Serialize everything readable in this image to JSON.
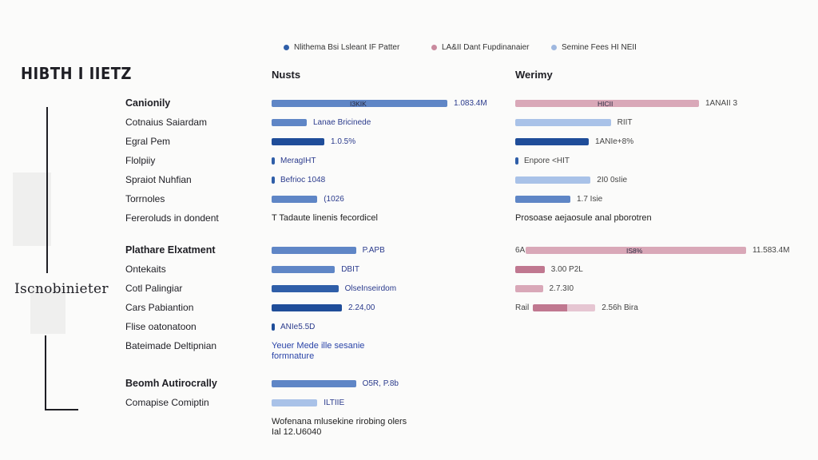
{
  "colors": {
    "blue_dark": "#1f4d99",
    "blue_mid": "#5f86c6",
    "blue_light": "#a9c2e8",
    "rose": "#d9a8b8",
    "rose_dark": "#c07890",
    "ink": "#1e1e24"
  },
  "title": "HIBTH I IIETZ",
  "side_label": "Iscnobinieter",
  "chart_data": {
    "type": "bar",
    "legend": [
      {
        "label": "Nlithema Bsi Lsleant IF Patter",
        "color": "#2f5ea8"
      },
      {
        "label": "LA&II Dant Fupdinanaier",
        "color": "#c98a9e"
      },
      {
        "label": "Semine Fees HI NEII",
        "color": "#9fb8df"
      }
    ],
    "columns": [
      "Nusts",
      "Werimy"
    ],
    "groups": [
      {
        "rows": [
          {
            "label": "Canionily",
            "is_header": true,
            "left": {
              "value": 100,
              "color": "#5f86c6",
              "inbar": "I3KIK",
              "text": "1.083.4M",
              "style": "bar"
            },
            "right": {
              "value": 100,
              "color": "#d9a8b8",
              "inbar": "HICII",
              "text": "1ANAII 3",
              "style": "bar"
            }
          },
          {
            "label": "Cotnaius Saiardam",
            "left": {
              "value": 20,
              "color": "#5f86c6",
              "text": "Lanae Bricinede",
              "style": "bar"
            },
            "right": {
              "value": 52,
              "color": "#a9c2e8",
              "text": "RIIT",
              "style": "bar"
            }
          },
          {
            "label": "Egral Pem",
            "left": {
              "value": 30,
              "color": "#1f4d99",
              "text": "1.0.5%",
              "style": "bar"
            },
            "right": {
              "value": 40,
              "color": "#1f4d99",
              "text": "1ANIe+8%",
              "style": "bar"
            }
          },
          {
            "label": "Flolpiiy",
            "left": {
              "value": 1,
              "color": "#2f5ea8",
              "text": "MeragIHT",
              "style": "tick"
            },
            "right": {
              "value": 1,
              "color": "#2f5ea8",
              "text": "Enpore <HIT",
              "style": "tick"
            }
          },
          {
            "label": "Spraiot Nuhfian",
            "left": {
              "value": 1,
              "color": "#2f5ea8",
              "text": "Befrioc 1048",
              "style": "tick"
            },
            "right": {
              "value": 41,
              "color": "#a9c2e8",
              "text": "2I0 0sIie",
              "style": "stripe"
            }
          },
          {
            "label": "Torrnoles",
            "left": {
              "value": 26,
              "color": "#5f86c6",
              "text": "(1026",
              "style": "bar"
            },
            "right": {
              "value": 30,
              "color": "#5f86c6",
              "text": "1.7 Isie",
              "style": "stripe"
            }
          },
          {
            "label": "Fereroluds in dondent",
            "left": {
              "text": "T Tadaute linenis fecordicel",
              "style": "note"
            },
            "right": {
              "text": "Prosoase aejaosule anal pborotren",
              "style": "note"
            }
          }
        ]
      },
      {
        "rows": [
          {
            "label": "Plathare Elxatment",
            "is_header": true,
            "left": {
              "value": 48,
              "color": "#5f86c6",
              "text": "P.APB",
              "style": "bar"
            },
            "right": {
              "value": 120,
              "color": "#d9a8b8",
              "inbar": "IS8%",
              "text": "11.583.4M",
              "prefix": "6A",
              "style": "bar"
            }
          },
          {
            "label": "Ontekaits",
            "left": {
              "value": 36,
              "color": "#5f86c6",
              "text": "DBIT",
              "style": "bar"
            },
            "right": {
              "value": 16,
              "color": "#c07890",
              "text": "3.00 P2L",
              "style": "bar"
            }
          },
          {
            "label": "Cotl Palingiar",
            "left": {
              "value": 38,
              "color": "#2f5ea8",
              "text": "OlseInseirdom",
              "style": "stripe"
            },
            "right": {
              "value": 15,
              "color": "#d9a8b8",
              "text": "2.7.3I0",
              "style": "stripe"
            }
          },
          {
            "label": "Cars Pabiantion",
            "left": {
              "value": 40,
              "color": "#1f4d99",
              "text": "2.24,00",
              "style": "bar"
            },
            "right": {
              "value": 34,
              "color": "#c07890",
              "text": "2.56h Bira",
              "prefix": "Rail",
              "style": "split"
            }
          },
          {
            "label": "Flise oatonatoon",
            "left": {
              "value": 2,
              "color": "#1f4d99",
              "text": "ANIe5.5D",
              "style": "tick"
            },
            "right": {
              "style": "empty"
            }
          },
          {
            "label": "Bateimade Deltipnian",
            "left": {
              "text": "Yeuer Mede ille sesanie",
              "text2": "formnature",
              "style": "note-blue"
            },
            "right": {
              "style": "empty"
            }
          }
        ]
      },
      {
        "rows": [
          {
            "label": "Beomh Autirocrally",
            "is_header": true,
            "left": {
              "value": 48,
              "color": "#5f86c6",
              "text": "O5R, P.8b",
              "style": "bar"
            },
            "right": {
              "style": "empty"
            }
          },
          {
            "label": "Comapise Comiptin",
            "left": {
              "value": 26,
              "color": "#a9c2e8",
              "text": "ILTIIE",
              "style": "bar"
            },
            "right": {
              "style": "empty"
            }
          },
          {
            "label": "",
            "left": {
              "text": "Wofenana mlusekine rirobing olers",
              "text2": "Ial 12.U6040",
              "style": "note"
            },
            "right": {
              "style": "empty"
            }
          }
        ]
      }
    ]
  }
}
